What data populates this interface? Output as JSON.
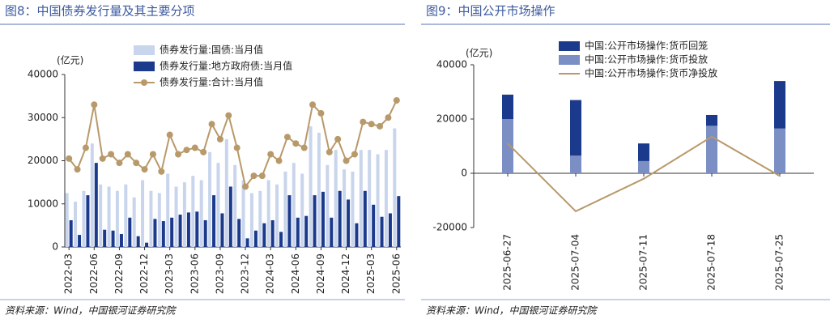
{
  "chart_data": [
    {
      "type": "bar",
      "stacked": false,
      "title": "图8：中国债券发行量及其主要分项",
      "y_unit": "(亿元)",
      "source": "资料来源：Wind，中国银河证券研究院",
      "categories": [
        "2022-03",
        null,
        null,
        "2022-06",
        null,
        null,
        "2022-09",
        null,
        null,
        "2022-12",
        null,
        null,
        "2023-03",
        null,
        null,
        "2023-06",
        null,
        null,
        "2023-09",
        null,
        null,
        "2023-12",
        null,
        null,
        "2024-03",
        null,
        null,
        "2024-06",
        null,
        null,
        "2024-09",
        null,
        null,
        "2024-12",
        null,
        null,
        "2025-03",
        null,
        null,
        "2025-06"
      ],
      "ylim": [
        0,
        40000
      ],
      "yticks": [
        0,
        10000,
        20000,
        30000,
        40000
      ],
      "series": [
        {
          "name": "债券发行量:国债:当月值",
          "type": "bar",
          "color": "#c9d5ec",
          "values": [
            12500,
            10500,
            13000,
            24000,
            14500,
            14000,
            13000,
            14500,
            11500,
            15500,
            13000,
            12500,
            17000,
            14000,
            15000,
            16500,
            15500,
            22000,
            19500,
            25000,
            19000,
            15500,
            12500,
            13000,
            15500,
            14500,
            17500,
            19500,
            17000,
            28000,
            26500,
            19000,
            22500,
            18000,
            17500,
            22500,
            22500,
            21500,
            22500,
            27500
          ]
        },
        {
          "name": "债券发行量:地方政府债:当月值",
          "type": "bar",
          "color": "#1b3a8c",
          "values": [
            6200,
            2800,
            12000,
            19500,
            4000,
            3800,
            3000,
            6800,
            2500,
            1000,
            6500,
            6000,
            6800,
            7500,
            8000,
            8200,
            6200,
            12000,
            7800,
            14000,
            6500,
            2000,
            3800,
            5500,
            6200,
            3500,
            12000,
            6800,
            7200,
            12000,
            12800,
            6800,
            13000,
            11000,
            5500,
            13000,
            9800,
            7000,
            7800,
            11800
          ]
        },
        {
          "name": "债券发行量:合计:当月值",
          "type": "line",
          "color": "#b8996a",
          "values": [
            20500,
            18000,
            23000,
            33000,
            20500,
            21500,
            19500,
            21500,
            19500,
            18000,
            21500,
            17500,
            26000,
            21500,
            22500,
            23000,
            22000,
            28500,
            25000,
            30500,
            23000,
            14000,
            16500,
            16500,
            21500,
            20000,
            25500,
            24000,
            23000,
            33000,
            31000,
            22000,
            25000,
            20000,
            21500,
            29000,
            28500,
            28000,
            30000,
            34000
          ]
        }
      ]
    },
    {
      "type": "bar",
      "stacked": true,
      "title": "图9：中国公开市场操作",
      "y_unit": "(亿元)",
      "source": "资料来源：Wind，中国银河证券研究院",
      "categories": [
        "2025-06-27",
        "2025-07-04",
        "2025-07-11",
        "2025-07-18",
        "2025-07-25"
      ],
      "ylim": [
        -20000,
        40000
      ],
      "yticks": [
        -20000,
        0,
        20000,
        40000
      ],
      "series": [
        {
          "name": "中国:公开市场操作:货币回笼",
          "type": "bar",
          "color": "#1b3a8c",
          "values": [
            9000,
            20500,
            6500,
            4000,
            17500
          ]
        },
        {
          "name": "中国:公开市场操作:货币投放",
          "type": "bar",
          "color": "#7b8fc4",
          "values": [
            20000,
            6500,
            4500,
            17500,
            16500
          ]
        },
        {
          "name": "中国:公开市场操作:货币净投放",
          "type": "line",
          "color": "#b8996a",
          "values": [
            11000,
            -14000,
            -2000,
            13500,
            -1000
          ]
        }
      ]
    }
  ]
}
